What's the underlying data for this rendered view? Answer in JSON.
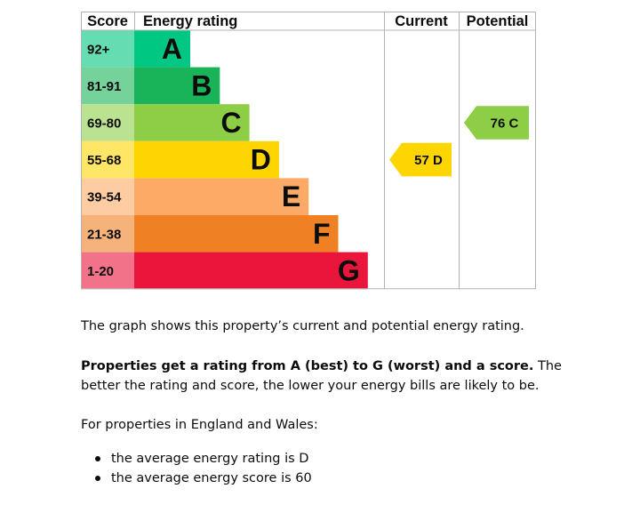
{
  "chart_data": {
    "type": "bar",
    "header": {
      "score": "Score",
      "rating": "Energy rating",
      "current": "Current",
      "potential": "Potential"
    },
    "bands": [
      {
        "letter": "A",
        "range": "92+",
        "color": "#00c781",
        "score_color": "#66dcb3"
      },
      {
        "letter": "B",
        "range": "81-91",
        "color": "#19b459",
        "score_color": "#75d29b"
      },
      {
        "letter": "C",
        "range": "69-80",
        "color": "#8dce46",
        "score_color": "#bbe290"
      },
      {
        "letter": "D",
        "range": "55-68",
        "color": "#ffd500",
        "score_color": "#ffe666"
      },
      {
        "letter": "E",
        "range": "39-54",
        "color": "#fcaa65",
        "score_color": "#fdcca3"
      },
      {
        "letter": "F",
        "range": "21-38",
        "color": "#ef8023",
        "score_color": "#f5b37b"
      },
      {
        "letter": "G",
        "range": "1-20",
        "color": "#e9153b",
        "score_color": "#f27389"
      }
    ],
    "current": {
      "score": 57,
      "letter": "D",
      "label": "57  D",
      "color": "#ffd500"
    },
    "potential": {
      "score": 76,
      "letter": "C",
      "label": "76  C",
      "color": "#8dce46"
    }
  },
  "text": {
    "intro": "The graph shows this property’s current and potential energy rating.",
    "rating_bold": "Properties get a rating from A (best) to G (worst) and a score.",
    "rating_rest": " The better the rating and score, the lower your energy bills are likely to be.",
    "region": "For properties in England and Wales:",
    "averages": [
      "the average energy rating is D",
      "the average energy score is 60"
    ]
  }
}
